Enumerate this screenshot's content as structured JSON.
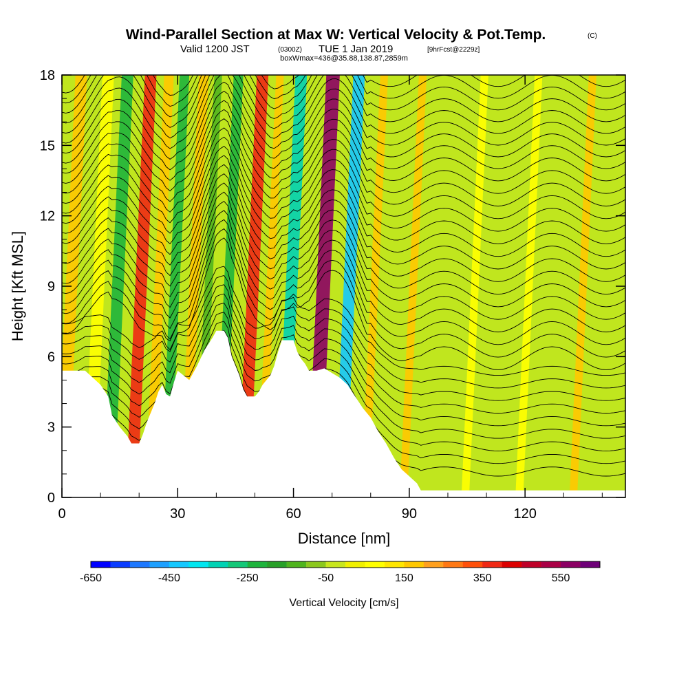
{
  "chart_data": {
    "type": "heatmap",
    "title": "Wind-Parallel Section at Max W: Vertical Velocity & Pot.Temp.",
    "title_mark": "(C)",
    "subtitle_main_a": "Valid 1200 JST",
    "subtitle_paren": "(0300Z)",
    "subtitle_main_b": "TUE 1 Jan 2019",
    "subtitle_bracket": "[9hrFcst@2229z]",
    "subtitle2": "boxWmax=436@35.88,138.87,2859m",
    "xlabel": "Distance [nm]",
    "ylabel": "Height [Kft MSL]",
    "xlim": [
      0,
      146
    ],
    "ylim": [
      0,
      18
    ],
    "xticks": [
      "0",
      "30",
      "60",
      "90",
      "120"
    ],
    "yticks": [
      "0",
      "3",
      "6",
      "9",
      "12",
      "15",
      "18"
    ],
    "colorbar_label": "Vertical Velocity [cm/s]",
    "colorbar_ticks": [
      "-650",
      "-450",
      "-250",
      "-50",
      "150",
      "350",
      "550"
    ],
    "colorbar_colors": [
      "#0000ff",
      "#0a3cff",
      "#1e78ff",
      "#1ea0ff",
      "#14c8ff",
      "#00e6f0",
      "#00d2b4",
      "#14c878",
      "#1eb43c",
      "#28a028",
      "#50b41e",
      "#8cc81e",
      "#c8e61e",
      "#f0f000",
      "#ffff00",
      "#ffe600",
      "#ffc800",
      "#ffa01e",
      "#ff7814",
      "#ff500a",
      "#f02814",
      "#dc0000",
      "#be0028",
      "#aa0046",
      "#8c0064",
      "#6e0078"
    ],
    "terrain_profile_kft": [
      [
        0,
        5.4
      ],
      [
        6,
        5.4
      ],
      [
        8,
        5.1
      ],
      [
        10,
        4.8
      ],
      [
        12,
        4.3
      ],
      [
        13,
        3.5
      ],
      [
        15,
        3.0
      ],
      [
        17,
        2.6
      ],
      [
        18,
        2.3
      ],
      [
        20,
        2.3
      ],
      [
        21,
        2.7
      ],
      [
        22,
        3.2
      ],
      [
        23,
        3.6
      ],
      [
        24,
        4.0
      ],
      [
        25,
        4.5
      ],
      [
        26,
        4.8
      ],
      [
        27,
        4.4
      ],
      [
        28,
        4.3
      ],
      [
        29,
        4.9
      ],
      [
        30,
        5.4
      ],
      [
        33,
        5.0
      ],
      [
        35,
        5.6
      ],
      [
        37,
        6.3
      ],
      [
        39,
        6.8
      ],
      [
        40,
        7.1
      ],
      [
        42,
        7.1
      ],
      [
        43,
        6.8
      ],
      [
        44,
        6.0
      ],
      [
        46,
        5.2
      ],
      [
        47,
        4.6
      ],
      [
        48,
        4.3
      ],
      [
        50,
        4.3
      ],
      [
        51,
        4.5
      ],
      [
        52,
        4.8
      ],
      [
        54,
        5.2
      ],
      [
        55,
        5.6
      ],
      [
        56,
        6.2
      ],
      [
        57,
        6.7
      ],
      [
        60,
        6.7
      ],
      [
        61,
        6.2
      ],
      [
        62,
        5.9
      ],
      [
        63,
        5.7
      ],
      [
        64,
        5.4
      ],
      [
        66,
        5.4
      ],
      [
        68,
        5.5
      ],
      [
        70,
        5.3
      ],
      [
        72,
        5.1
      ],
      [
        74,
        4.8
      ],
      [
        76,
        4.3
      ],
      [
        78,
        3.8
      ],
      [
        80,
        3.4
      ],
      [
        82,
        2.8
      ],
      [
        84,
        2.3
      ],
      [
        86,
        1.7
      ],
      [
        88,
        1.2
      ],
      [
        90,
        0.9
      ],
      [
        92,
        0.6
      ],
      [
        93,
        0.3
      ],
      [
        146,
        0.3
      ]
    ],
    "velocity_bands": [
      {
        "x": 1,
        "w": 3,
        "value": 150
      },
      {
        "x": 8,
        "w": 3,
        "value": 50
      },
      {
        "x": 13,
        "w": 3,
        "value": -250
      },
      {
        "x": 19,
        "w": 3,
        "value": 350
      },
      {
        "x": 24,
        "w": 2.5,
        "value": 150
      },
      {
        "x": 28,
        "w": 2.5,
        "value": -250
      },
      {
        "x": 33,
        "w": 2.5,
        "value": 150
      },
      {
        "x": 37,
        "w": 2,
        "value": -150
      },
      {
        "x": 42,
        "w": 2.5,
        "value": -250
      },
      {
        "x": 48,
        "w": 3,
        "value": 350
      },
      {
        "x": 53,
        "w": 2,
        "value": 150
      },
      {
        "x": 58,
        "w": 3,
        "value": -350
      },
      {
        "x": 66,
        "w": 3.5,
        "value": 550
      },
      {
        "x": 73,
        "w": 3,
        "value": -450
      },
      {
        "x": 80,
        "w": 2,
        "value": 150
      },
      {
        "x": 90,
        "w": 2,
        "value": 150
      },
      {
        "x": 106,
        "w": 2,
        "value": 50
      },
      {
        "x": 120,
        "w": 2,
        "value": 50
      },
      {
        "x": 134,
        "w": 2,
        "value": 150
      }
    ]
  }
}
